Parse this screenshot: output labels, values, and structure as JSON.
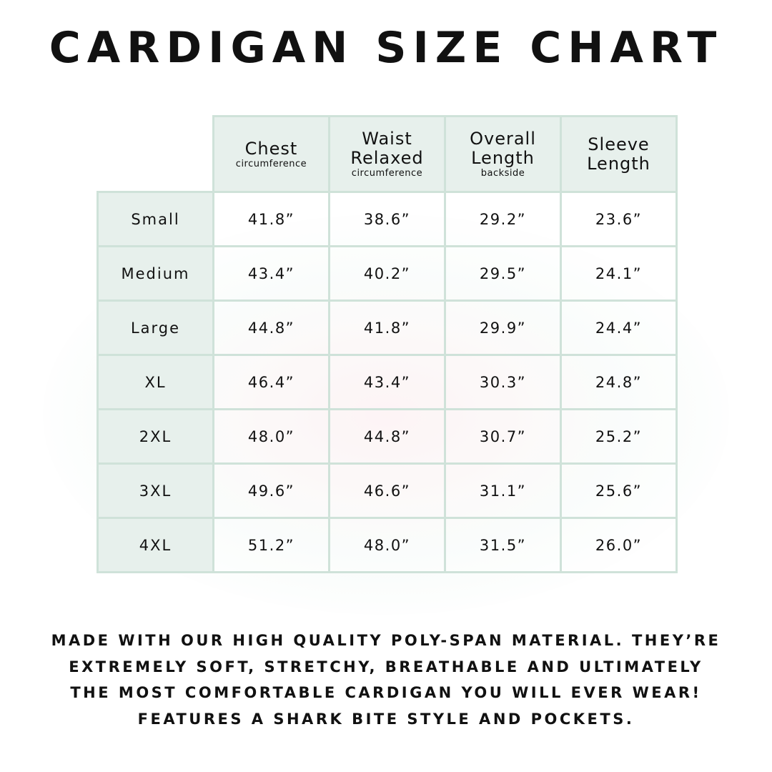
{
  "title": "CARDIGAN SIZE CHART",
  "table": {
    "headers": [
      {
        "main": "Chest",
        "sub": "circumference"
      },
      {
        "main": "Waist Relaxed",
        "sub": "circumference"
      },
      {
        "main": "Overall Length",
        "sub": "backside"
      },
      {
        "main": "Sleeve Length",
        "sub": ""
      }
    ],
    "rows": [
      {
        "size": "Small",
        "values": [
          "41.8”",
          "38.6”",
          "29.2”",
          "23.6”"
        ]
      },
      {
        "size": "Medium",
        "values": [
          "43.4”",
          "40.2”",
          "29.5”",
          "24.1”"
        ]
      },
      {
        "size": "Large",
        "values": [
          "44.8”",
          "41.8”",
          "29.9”",
          "24.4”"
        ]
      },
      {
        "size": "XL",
        "values": [
          "46.4”",
          "43.4”",
          "30.3”",
          "24.8”"
        ]
      },
      {
        "size": "2XL",
        "values": [
          "48.0”",
          "44.8”",
          "30.7”",
          "25.2”"
        ]
      },
      {
        "size": "3XL",
        "values": [
          "49.6”",
          "46.6”",
          "31.1”",
          "25.6”"
        ]
      },
      {
        "size": "4XL",
        "values": [
          "51.2”",
          "48.0”",
          "31.5”",
          "26.0”"
        ]
      }
    ]
  },
  "footer": {
    "lines": [
      "MADE WITH OUR HIGH QUALITY POLY-SPAN MATERIAL. THEY’RE",
      "EXTREMELY SOFT, STRETCHY, BREATHABLE AND ULTIMATELY",
      "THE MOST COMFORTABLE CARDIGAN YOU WILL EVER WEAR!",
      "FEATURES A SHARK BITE STYLE AND POCKETS."
    ]
  },
  "colors": {
    "border": "#cfe2d9",
    "header_bg": "#e7f0ec",
    "text": "#111111"
  }
}
